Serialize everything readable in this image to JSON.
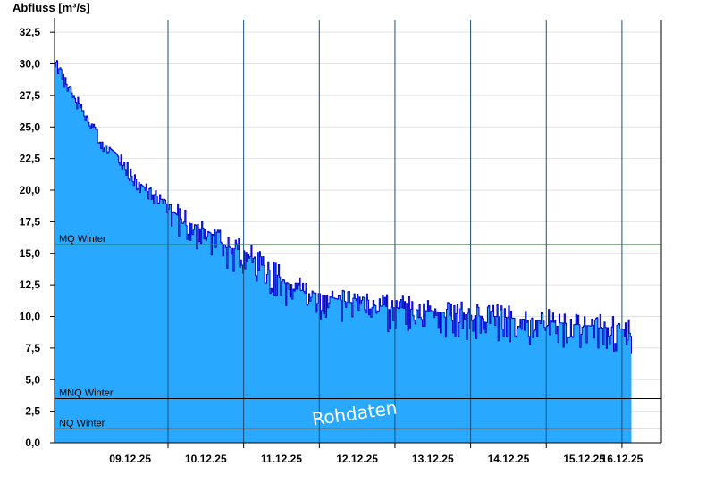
{
  "chart_data": {
    "type": "area",
    "ylabel": "Abfluss [m³/s]",
    "ylim": [
      0,
      33.5
    ],
    "y_ticks": [
      "0,0",
      "2,5",
      "5,0",
      "7,5",
      "10,0",
      "12,5",
      "15,0",
      "17,5",
      "20,0",
      "22,5",
      "25,0",
      "27,5",
      "30,0",
      "32,5"
    ],
    "xlim": [
      "2025-12-08 12:00",
      "2025-12-16 12:30"
    ],
    "x_ticks": [
      "09.12.25",
      "10.12.25",
      "11.12.25",
      "12.12.25",
      "13.12.25",
      "14.12.25",
      "15.12.25",
      "16.12.25"
    ],
    "grid": true,
    "reference_lines": [
      {
        "label": "MQ Winter",
        "value": 15.7,
        "color": "#2e8b2e"
      },
      {
        "label": "MNQ Winter",
        "value": 3.5,
        "color": "#000000"
      },
      {
        "label": "NQ Winter",
        "value": 1.1,
        "color": "#000000"
      }
    ],
    "watermark": "Rohdaten",
    "colors": {
      "fill": "#29a8ff",
      "line": "#0000cc"
    },
    "series": [
      {
        "x": [
          "2025-12-08 12:00",
          "2025-12-08 13:30",
          "2025-12-08 15:00",
          "2025-12-08 17:00",
          "2025-12-08 19:00",
          "2025-12-08 21:00",
          "2025-12-09 00:00",
          "2025-12-09 03:00",
          "2025-12-09 05:00",
          "2025-12-09 07:00",
          "2025-12-09 09:00",
          "2025-12-09 11:00",
          "2025-12-09 13:00",
          "2025-12-09 16:00",
          "2025-12-09 19:00",
          "2025-12-09 23:00",
          "2025-12-10 02:00",
          "2025-12-10 05:00",
          "2025-12-10 08:00",
          "2025-12-10 11:00",
          "2025-12-10 14:00",
          "2025-12-10 17:00",
          "2025-12-10 20:00",
          "2025-12-11 00:00",
          "2025-12-11 04:00",
          "2025-12-11 07:00",
          "2025-12-11 10:00",
          "2025-12-11 13:00",
          "2025-12-11 16:00",
          "2025-12-11 19:00",
          "2025-12-12 00:00",
          "2025-12-12 04:00",
          "2025-12-12 08:00",
          "2025-12-12 12:00",
          "2025-12-12 16:00",
          "2025-12-12 20:00",
          "2025-12-13 00:00",
          "2025-12-13 04:00",
          "2025-12-13 08:00",
          "2025-12-13 12:00",
          "2025-12-13 16:00",
          "2025-12-13 20:00",
          "2025-12-14 00:00",
          "2025-12-14 04:00",
          "2025-12-14 08:00",
          "2025-12-14 12:00",
          "2025-12-14 16:00",
          "2025-12-14 20:00",
          "2025-12-15 00:00",
          "2025-12-15 04:00",
          "2025-12-15 08:00",
          "2025-12-15 12:00",
          "2025-12-15 16:00",
          "2025-12-15 20:00",
          "2025-12-16 00:00",
          "2025-12-16 02:00",
          "2025-12-16 03:00"
        ],
        "values": [
          30.5,
          29.5,
          28.7,
          27.8,
          27.2,
          26.3,
          25.0,
          23.8,
          23.4,
          23.0,
          22.5,
          21.8,
          21.0,
          20.3,
          19.8,
          19.0,
          18.2,
          17.5,
          17.3,
          17.0,
          16.5,
          15.8,
          15.4,
          15.2,
          14.4,
          13.8,
          13.4,
          12.8,
          12.2,
          12.0,
          11.8,
          11.5,
          11.2,
          11.0,
          10.9,
          10.8,
          10.7,
          10.6,
          10.5,
          10.4,
          10.3,
          10.2,
          10.1,
          10.0,
          10.0,
          9.9,
          9.8,
          9.7,
          9.6,
          9.5,
          9.4,
          9.3,
          9.2,
          9.1,
          9.0,
          8.9,
          8.9
        ]
      }
    ]
  }
}
